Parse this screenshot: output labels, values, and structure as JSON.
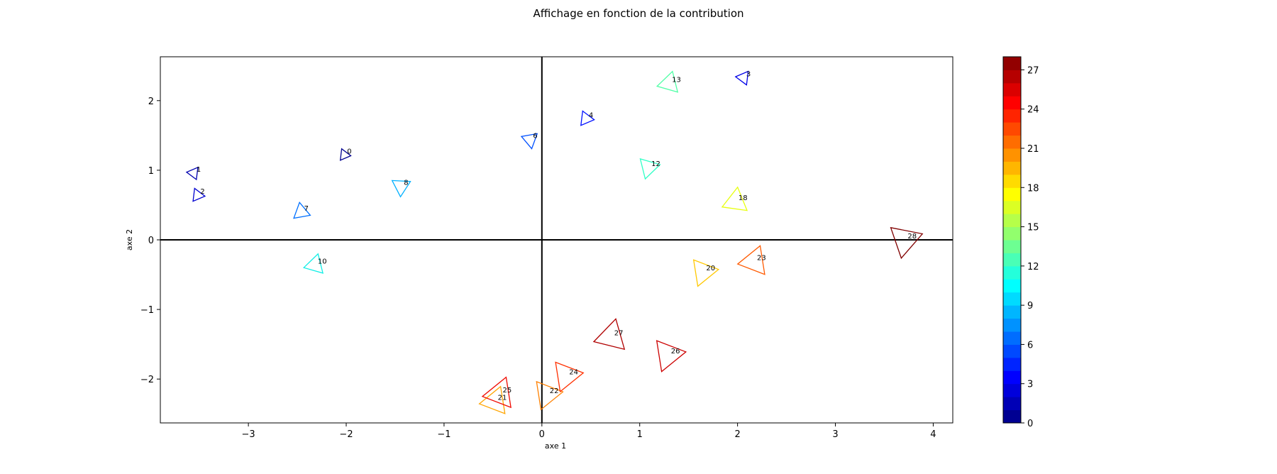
{
  "chart_data": {
    "type": "scatter",
    "title": "Affichage en fonction de la contribution",
    "xlabel": "axe 1",
    "ylabel": "axe 2",
    "xlim": [
      -3.9,
      4.2
    ],
    "ylim": [
      -2.63,
      2.63
    ],
    "xticks": [
      -3,
      -2,
      -1,
      0,
      1,
      2,
      3,
      4
    ],
    "yticks": [
      -2,
      -1,
      0,
      1,
      2
    ],
    "marker": "triangle",
    "colormap": "jet",
    "colorbar": {
      "min": 0,
      "max": 28,
      "ticks": [
        0,
        3,
        6,
        9,
        12,
        15,
        18,
        21,
        24,
        27
      ]
    },
    "points": [
      {
        "label": "0",
        "x": -2.02,
        "y": 1.22,
        "contribution": 0.5,
        "color": "#00008f"
      },
      {
        "label": "1",
        "x": -3.56,
        "y": 0.96,
        "contribution": 1.5,
        "color": "#0000b0"
      },
      {
        "label": "2",
        "x": -3.52,
        "y": 0.64,
        "contribution": 2.5,
        "color": "#0000d0"
      },
      {
        "label": "3",
        "x": 2.06,
        "y": 2.33,
        "contribution": 3.5,
        "color": "#0000e8"
      },
      {
        "label": "4",
        "x": 0.45,
        "y": 1.74,
        "contribution": 4.5,
        "color": "#0010ff"
      },
      {
        "label": "6",
        "x": -0.12,
        "y": 1.44,
        "contribution": 6.5,
        "color": "#0050ff"
      },
      {
        "label": "7",
        "x": -2.46,
        "y": 0.4,
        "contribution": 7.5,
        "color": "#0070ff"
      },
      {
        "label": "8",
        "x": -1.44,
        "y": 0.77,
        "contribution": 9.5,
        "color": "#00b0ff"
      },
      {
        "label": "10",
        "x": -2.32,
        "y": -0.36,
        "contribution": 11.5,
        "color": "#10eee6"
      },
      {
        "label": "12",
        "x": 1.09,
        "y": 1.04,
        "contribution": 12.5,
        "color": "#30ffc6"
      },
      {
        "label": "13",
        "x": 1.3,
        "y": 2.25,
        "contribution": 13.5,
        "color": "#50ffa6"
      },
      {
        "label": "18",
        "x": 1.98,
        "y": 0.55,
        "contribution": 18.5,
        "color": "#e8ff10"
      },
      {
        "label": "20",
        "x": 1.65,
        "y": -0.46,
        "contribution": 20.5,
        "color": "#ffc800"
      },
      {
        "label": "21",
        "x": -0.48,
        "y": -2.32,
        "contribution": 21.5,
        "color": "#ffa500"
      },
      {
        "label": "22",
        "x": 0.05,
        "y": -2.22,
        "contribution": 22.5,
        "color": "#ff8000"
      },
      {
        "label": "23",
        "x": 2.17,
        "y": -0.31,
        "contribution": 23.5,
        "color": "#ff5a00"
      },
      {
        "label": "24",
        "x": 0.25,
        "y": -1.95,
        "contribution": 24.5,
        "color": "#ff3000"
      },
      {
        "label": "25",
        "x": -0.43,
        "y": -2.21,
        "contribution": 25.5,
        "color": "#f00a00"
      },
      {
        "label": "26",
        "x": 1.29,
        "y": -1.65,
        "contribution": 26.5,
        "color": "#cc0000"
      },
      {
        "label": "27",
        "x": 0.71,
        "y": -1.39,
        "contribution": 27.0,
        "color": "#b00000"
      },
      {
        "label": "28",
        "x": 3.71,
        "y": 0.0,
        "contribution": 27.8,
        "color": "#800000"
      }
    ]
  }
}
